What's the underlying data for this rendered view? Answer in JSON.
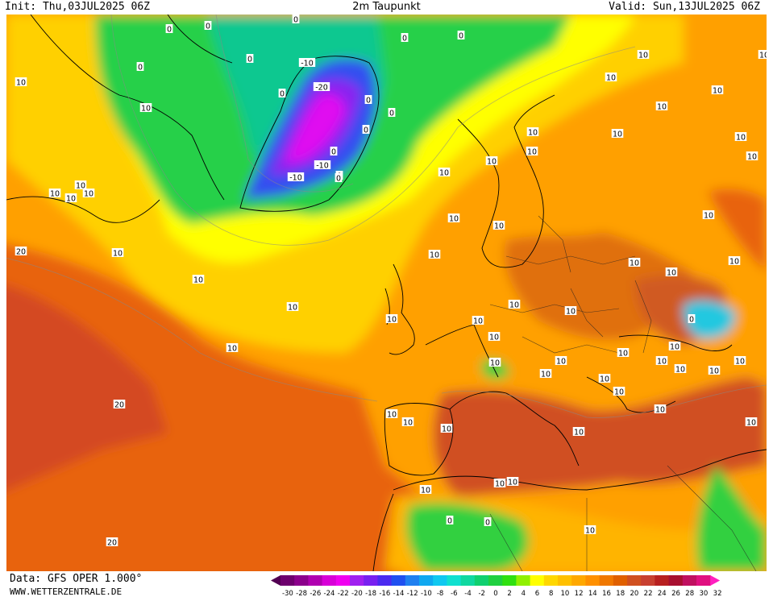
{
  "header": {
    "init": "Init: Thu,03JUL2025 06Z",
    "title": "2m Taupunkt",
    "valid": "Valid: Sun,13JUL2025 06Z"
  },
  "footer": {
    "data_source": "Data: GFS OPER 1.000°",
    "website": "WWW.WETTERZENTRALE.DE"
  },
  "legend": {
    "ticks": [
      "-30",
      "-28",
      "-26",
      "-24",
      "-22",
      "-20",
      "-18",
      "-16",
      "-14",
      "-12",
      "-10",
      "-8",
      "-6",
      "-4",
      "-2",
      "0",
      "2",
      "4",
      "6",
      "8",
      "10",
      "12",
      "14",
      "16",
      "18",
      "20",
      "22",
      "24",
      "26",
      "28",
      "30",
      "32"
    ],
    "colors": [
      "#520052",
      "#6e006e",
      "#8c008c",
      "#b000b0",
      "#d800d8",
      "#f000f0",
      "#a020f0",
      "#7820f0",
      "#4b2af0",
      "#2050f0",
      "#2080f0",
      "#10a8f0",
      "#10c8f0",
      "#10e0d0",
      "#10d8a0",
      "#10d070",
      "#20d040",
      "#30e010",
      "#90f000",
      "#ffff00",
      "#ffd700",
      "#ffc000",
      "#ffa800",
      "#ff9000",
      "#f07800",
      "#e06000",
      "#d05020",
      "#c84030",
      "#b82020",
      "#a81030",
      "#c01060",
      "#e01080",
      "#ff20c0"
    ]
  },
  "contour_labels": [
    {
      "v": "10"
    },
    {
      "v": "10"
    },
    {
      "v": "0"
    },
    {
      "v": "0"
    },
    {
      "v": "0"
    },
    {
      "v": "0"
    },
    {
      "v": "0"
    },
    {
      "v": "0"
    },
    {
      "v": "0"
    },
    {
      "v": "0"
    },
    {
      "v": "-10"
    },
    {
      "v": "-20"
    },
    {
      "v": "0"
    },
    {
      "v": "0"
    },
    {
      "v": "0"
    },
    {
      "v": "0"
    },
    {
      "v": "0"
    },
    {
      "v": "-10"
    },
    {
      "v": "-10"
    },
    {
      "v": "0"
    },
    {
      "v": "10"
    },
    {
      "v": "10"
    },
    {
      "v": "10"
    },
    {
      "v": "10"
    },
    {
      "v": "10"
    },
    {
      "v": "10"
    },
    {
      "v": "10"
    },
    {
      "v": "10"
    },
    {
      "v": "10"
    },
    {
      "v": "10"
    },
    {
      "v": "20"
    },
    {
      "v": "10"
    },
    {
      "v": "10"
    },
    {
      "v": "10"
    },
    {
      "v": "10"
    },
    {
      "v": "10"
    },
    {
      "v": "10"
    },
    {
      "v": "10"
    },
    {
      "v": "10"
    },
    {
      "v": "10"
    },
    {
      "v": "10"
    },
    {
      "v": "10"
    },
    {
      "v": "10"
    },
    {
      "v": "10"
    },
    {
      "v": "10"
    },
    {
      "v": "10"
    },
    {
      "v": "0"
    },
    {
      "v": "10"
    },
    {
      "v": "10"
    },
    {
      "v": "10"
    },
    {
      "v": "10"
    },
    {
      "v": "10"
    },
    {
      "v": "10"
    },
    {
      "v": "10"
    },
    {
      "v": "10"
    },
    {
      "v": "10"
    },
    {
      "v": "10"
    },
    {
      "v": "10"
    },
    {
      "v": "10"
    },
    {
      "v": "20"
    },
    {
      "v": "10"
    },
    {
      "v": "10"
    },
    {
      "v": "10"
    },
    {
      "v": "10"
    },
    {
      "v": "10"
    },
    {
      "v": "10"
    },
    {
      "v": "10"
    },
    {
      "v": "10"
    },
    {
      "v": "0"
    },
    {
      "v": "0"
    },
    {
      "v": "10"
    },
    {
      "v": "20"
    },
    {
      "v": "10"
    },
    {
      "v": "10"
    },
    {
      "v": "10"
    },
    {
      "v": "10"
    },
    {
      "v": "10"
    },
    {
      "v": "10"
    },
    {
      "v": "10"
    },
    {
      "v": "10"
    }
  ]
}
